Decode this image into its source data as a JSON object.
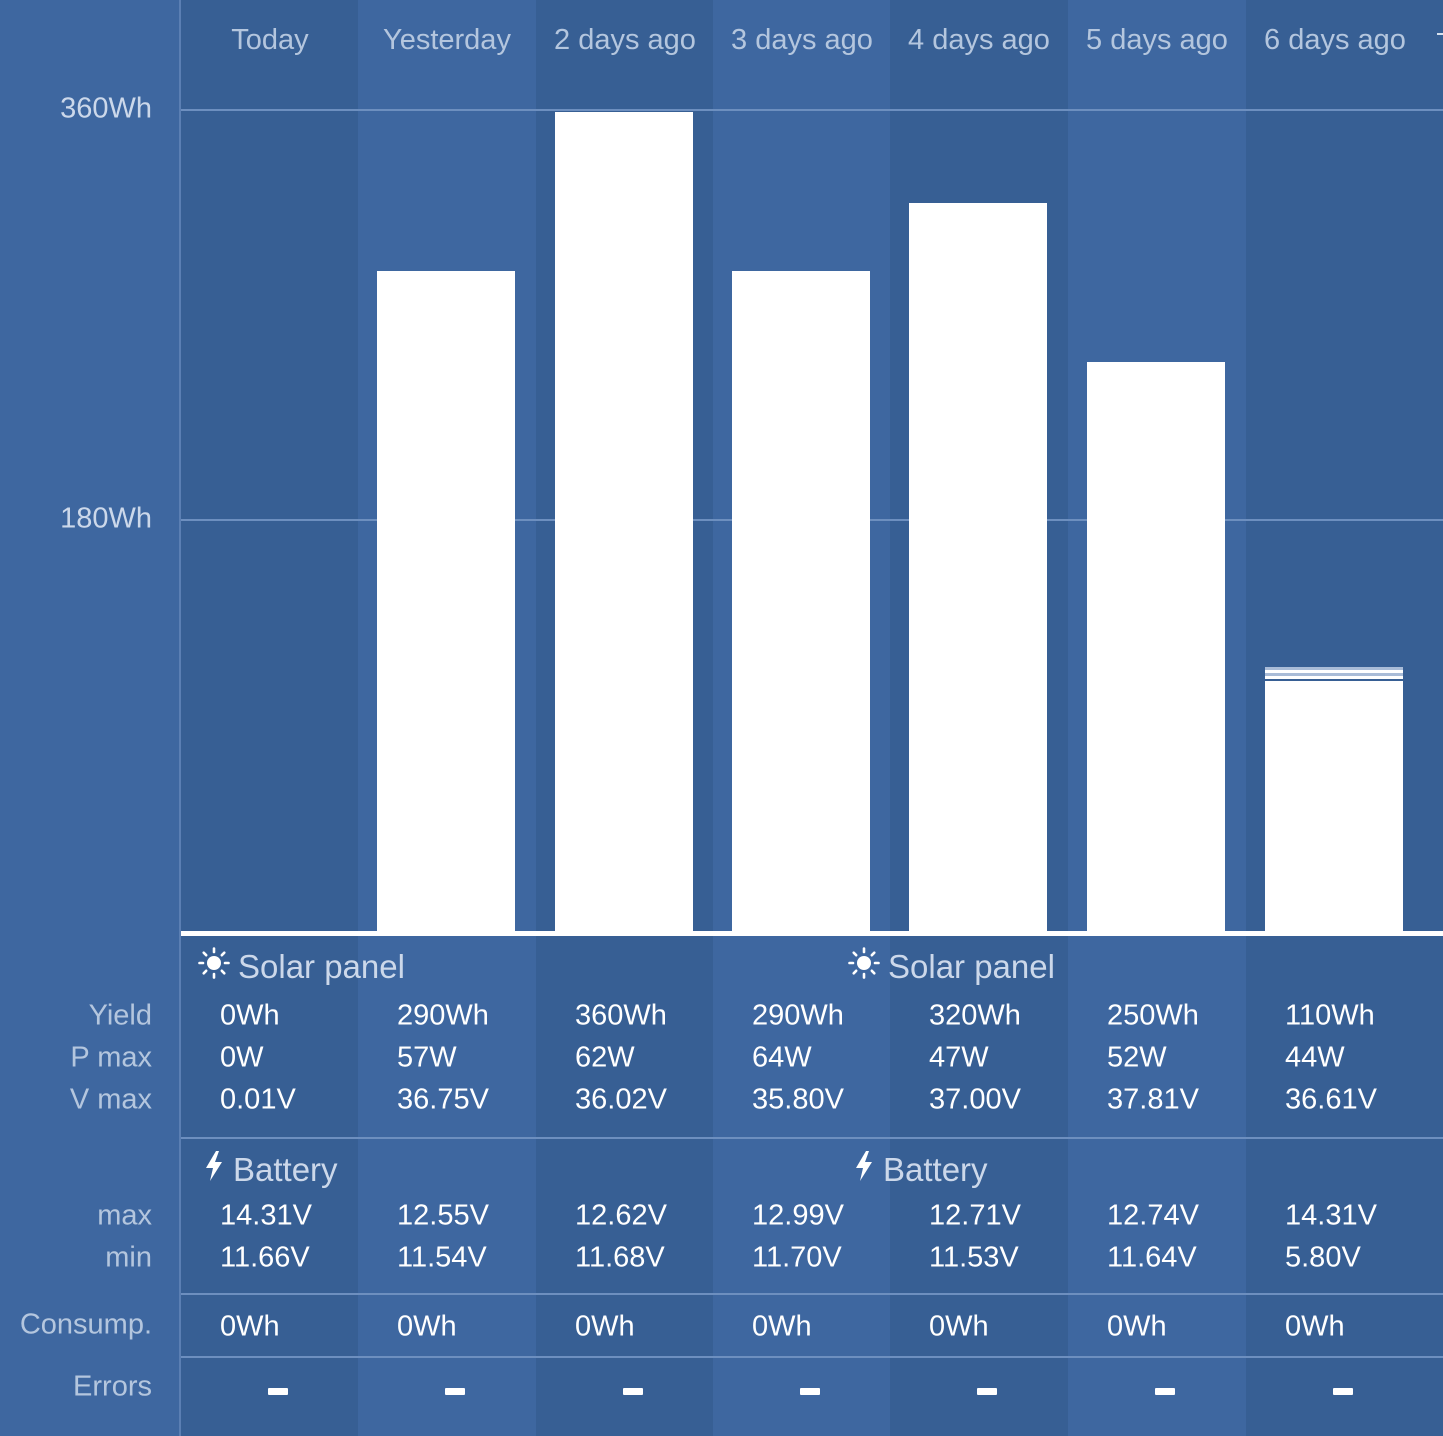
{
  "colors": {
    "background": "#3e67a0",
    "column_alt": "#375f94",
    "bar": "#ffffff",
    "label": "#b4c6de",
    "value": "#ffffff"
  },
  "days": [
    "Today",
    "Yesterday",
    "2 days ago",
    "3 days ago",
    "4 days ago",
    "5 days ago",
    "6 days ago"
  ],
  "chart_data": {
    "type": "bar",
    "categories": [
      "Today",
      "Yesterday",
      "2 days ago",
      "3 days ago",
      "4 days ago",
      "5 days ago",
      "6 days ago"
    ],
    "series": [
      {
        "values": [
          0,
          290,
          360,
          290,
          320,
          250,
          110
        ]
      }
    ],
    "ylim": [
      0,
      360
    ],
    "yticks": [
      {
        "value": 360,
        "label": "360Wh"
      },
      {
        "value": 180,
        "label": "180Wh"
      }
    ],
    "grid": true,
    "legend": "none"
  },
  "solar_panel": {
    "title": "Solar panel",
    "icon": "sun-icon",
    "rows": [
      {
        "label": "Yield",
        "values": [
          "0Wh",
          "290Wh",
          "360Wh",
          "290Wh",
          "320Wh",
          "250Wh",
          "110Wh"
        ]
      },
      {
        "label": "P max",
        "values": [
          "0W",
          "57W",
          "62W",
          "64W",
          "47W",
          "52W",
          "44W"
        ]
      },
      {
        "label": "V max",
        "values": [
          "0.01V",
          "36.75V",
          "36.02V",
          "35.80V",
          "37.00V",
          "37.81V",
          "36.61V"
        ]
      }
    ]
  },
  "battery": {
    "title": "Battery",
    "icon": "lightning-icon",
    "rows": [
      {
        "label": "max",
        "values": [
          "14.31V",
          "12.55V",
          "12.62V",
          "12.99V",
          "12.71V",
          "12.74V",
          "14.31V"
        ]
      },
      {
        "label": "min",
        "values": [
          "11.66V",
          "11.54V",
          "11.68V",
          "11.70V",
          "11.53V",
          "11.64V",
          "5.80V"
        ]
      }
    ]
  },
  "consumption": {
    "label": "Consump.",
    "values": [
      "0Wh",
      "0Wh",
      "0Wh",
      "0Wh",
      "0Wh",
      "0Wh",
      "0Wh"
    ]
  },
  "errors": {
    "label": "Errors",
    "values": [
      "—",
      "—",
      "—",
      "—",
      "—",
      "—",
      "—"
    ]
  }
}
